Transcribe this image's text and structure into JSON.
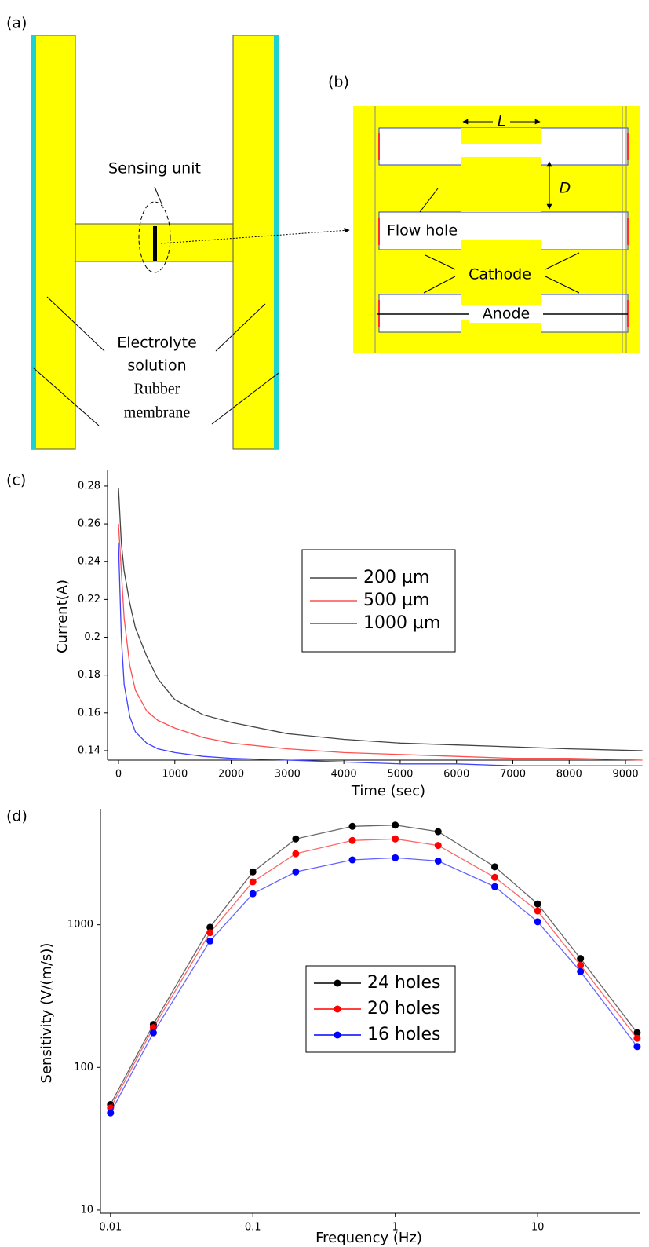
{
  "diagram_a": {
    "panel_label": "(a)",
    "sensing_unit": "Sensing unit",
    "electrolyte": [
      "Electrolyte",
      "solution"
    ],
    "membrane": [
      "Rubber",
      "membrane"
    ]
  },
  "diagram_b": {
    "panel_label": "(b)",
    "length": "L",
    "depth": "D",
    "flow_hole": "Flow hole",
    "cathode": "Cathode",
    "anode": "Anode"
  },
  "chart_data": [
    {
      "type": "line",
      "panel_label": "(c)",
      "x_label": "Time (sec)",
      "y_label": "Current(A)",
      "x": [
        0,
        50,
        100,
        200,
        300,
        500,
        700,
        1000,
        1500,
        2000,
        3000,
        4000,
        5000,
        6000,
        7000,
        8000,
        9300
      ],
      "series": [
        {
          "name": "200 µm",
          "color": "#444444",
          "values": [
            0.279,
            0.25,
            0.235,
            0.218,
            0.205,
            0.19,
            0.178,
            0.167,
            0.159,
            0.155,
            0.149,
            0.146,
            0.144,
            0.143,
            0.142,
            0.141,
            0.14
          ]
        },
        {
          "name": "500 µm",
          "color": "#ff5050",
          "values": [
            0.26,
            0.235,
            0.21,
            0.185,
            0.172,
            0.161,
            0.156,
            0.152,
            0.147,
            0.144,
            0.141,
            0.139,
            0.138,
            0.137,
            0.136,
            0.136,
            0.135
          ]
        },
        {
          "name": "1000 µm",
          "color": "#4040ff",
          "values": [
            0.25,
            0.2,
            0.175,
            0.158,
            0.15,
            0.144,
            0.141,
            0.139,
            0.137,
            0.136,
            0.135,
            0.134,
            0.133,
            0.133,
            0.132,
            0.132,
            0.132
          ]
        }
      ],
      "xlim": [
        -195,
        9250
      ],
      "ylim": [
        0.135,
        0.2887
      ],
      "xticks": [
        0,
        1000,
        2000,
        3000,
        4000,
        5000,
        6000,
        7000,
        8000,
        9000
      ],
      "yticks": [
        0.14,
        0.16,
        0.18,
        0.2,
        0.22,
        0.24,
        0.26,
        0.28
      ],
      "legend": "center"
    },
    {
      "type": "line",
      "panel_label": "(d)",
      "x_label": "Frequency (Hz)",
      "y_label": "Sensitivity (V/(m/s))",
      "log_x": true,
      "log_y": true,
      "markers": true,
      "x": [
        0.01,
        0.02,
        0.05,
        0.1,
        0.2,
        0.5,
        1,
        2,
        5,
        10,
        20,
        50
      ],
      "series": [
        {
          "name": "24 holes",
          "color": "#000000",
          "values": [
            55,
            200,
            960,
            2350,
            4000,
            4900,
            5000,
            4500,
            2550,
            1400,
            580,
            175
          ]
        },
        {
          "name": "20 holes",
          "color": "#ff0000",
          "values": [
            52,
            190,
            880,
            2000,
            3150,
            3900,
            4000,
            3600,
            2150,
            1250,
            520,
            160
          ]
        },
        {
          "name": "16 holes",
          "color": "#0000ff",
          "values": [
            48,
            175,
            770,
            1650,
            2350,
            2850,
            2950,
            2800,
            1850,
            1050,
            470,
            140
          ]
        }
      ],
      "xlim": [
        0.0085,
        52
      ],
      "ylim": [
        9.5,
        6500
      ],
      "xticks": [
        0.01,
        0.1,
        1,
        10
      ],
      "yticks": [
        10,
        100,
        1000
      ],
      "legend": "center"
    }
  ]
}
